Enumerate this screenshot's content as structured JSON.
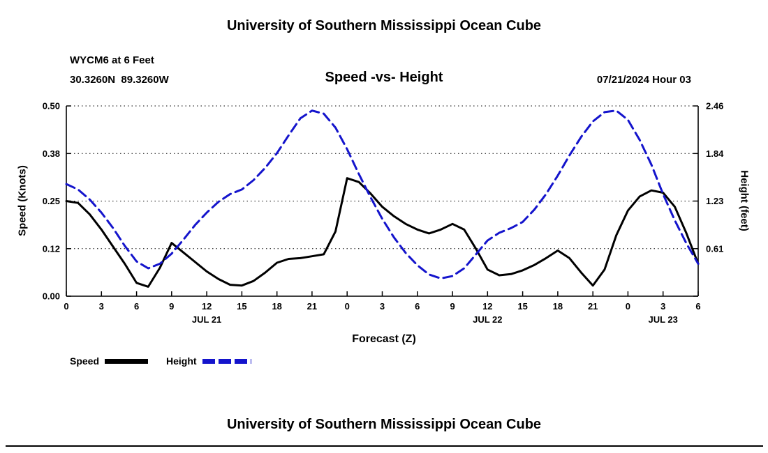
{
  "page": {
    "top_title": "University of Southern Mississippi Ocean Cube",
    "bottom_title": "University of Southern Mississippi Ocean Cube"
  },
  "header": {
    "station": "WYCM6 at 6 Feet",
    "coordinates": "30.3260N  89.3260W",
    "chart_title": "Speed -vs- Height",
    "datetime": "07/21/2024 Hour 03"
  },
  "legend": {
    "speed_label": "Speed",
    "height_label": "Height"
  },
  "colors": {
    "speed": "#000000",
    "height": "#1414cc"
  },
  "chart_data": {
    "type": "line",
    "title": "Speed -vs- Height",
    "xlabel": "Forecast (Z)",
    "ylabel_left": "Speed (Knots)",
    "ylabel_right": "Height (feet)",
    "grid": "horizontal-dotted",
    "legend_position": "bottom-left",
    "x_hours_range": [
      0,
      54
    ],
    "x_step_hours": 1,
    "x_tick_interval": 3,
    "x_tick_labels": [
      "0",
      "3",
      "6",
      "9",
      "12",
      "15",
      "18",
      "21",
      "0",
      "3",
      "6",
      "9",
      "12",
      "15",
      "18",
      "21",
      "0",
      "3",
      "6"
    ],
    "x_date_labels": [
      {
        "label": "JUL 21",
        "hour": 12
      },
      {
        "label": "JUL 22",
        "hour": 36
      },
      {
        "label": "JUL 23",
        "hour": 51
      }
    ],
    "y_left_ticks": [
      "0.00",
      "0.12",
      "0.25",
      "0.38",
      "0.50"
    ],
    "y_left_range": [
      0,
      0.5
    ],
    "y_right_ticks": [
      "0.61",
      "1.23",
      "1.84",
      "2.46"
    ],
    "y_right_range": [
      0,
      2.46
    ],
    "series": [
      {
        "name": "Speed",
        "axis": "left",
        "color": "#000000",
        "dash": null,
        "values": [
          0.25,
          0.245,
          0.215,
          0.175,
          0.13,
          0.085,
          0.035,
          0.025,
          0.075,
          0.14,
          0.115,
          0.09,
          0.065,
          0.045,
          0.03,
          0.028,
          0.04,
          0.062,
          0.088,
          0.098,
          0.1,
          0.105,
          0.11,
          0.17,
          0.31,
          0.3,
          0.27,
          0.235,
          0.21,
          0.19,
          0.175,
          0.165,
          0.175,
          0.19,
          0.175,
          0.125,
          0.07,
          0.055,
          0.058,
          0.068,
          0.082,
          0.1,
          0.12,
          0.1,
          0.062,
          0.028,
          0.07,
          0.16,
          0.225,
          0.262,
          0.278,
          0.272,
          0.235,
          0.165,
          0.085
        ]
      },
      {
        "name": "Height",
        "axis": "right",
        "color": "#1414cc",
        "dash": [
          13,
          7
        ],
        "values": [
          1.45,
          1.38,
          1.25,
          1.08,
          0.88,
          0.65,
          0.45,
          0.36,
          0.42,
          0.55,
          0.73,
          0.92,
          1.08,
          1.22,
          1.32,
          1.38,
          1.5,
          1.66,
          1.85,
          2.08,
          2.3,
          2.4,
          2.36,
          2.18,
          1.9,
          1.58,
          1.28,
          1.0,
          0.76,
          0.56,
          0.4,
          0.28,
          0.23,
          0.26,
          0.36,
          0.54,
          0.72,
          0.82,
          0.88,
          0.96,
          1.12,
          1.32,
          1.56,
          1.82,
          2.06,
          2.26,
          2.38,
          2.4,
          2.28,
          2.02,
          1.7,
          1.32,
          0.98,
          0.68,
          0.42
        ]
      }
    ]
  }
}
